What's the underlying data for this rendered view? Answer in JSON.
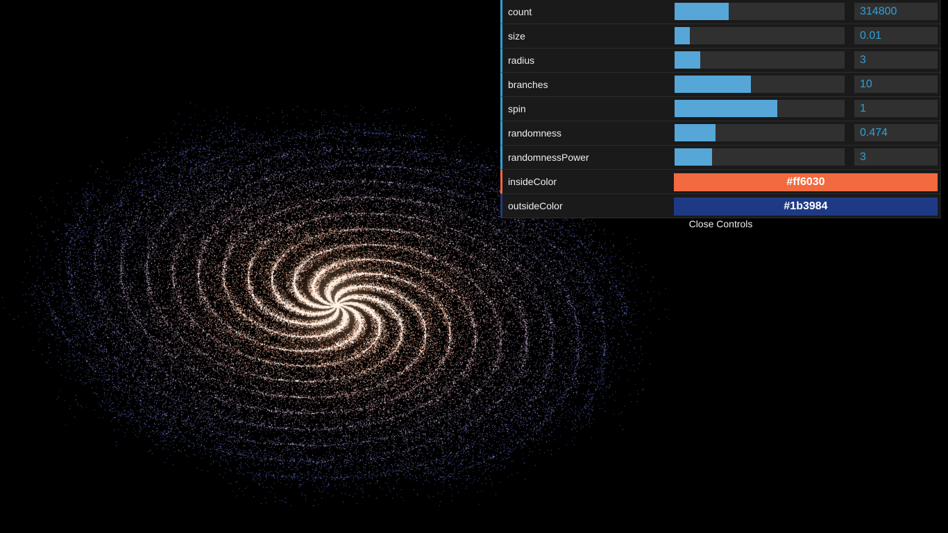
{
  "canvas": {
    "background": "#000000"
  },
  "controls": [
    {
      "key": "count",
      "label": "count",
      "value": "314800",
      "fill": 0.32
    },
    {
      "key": "size",
      "label": "size",
      "value": "0.01",
      "fill": 0.09
    },
    {
      "key": "radius",
      "label": "radius",
      "value": "3",
      "fill": 0.15
    },
    {
      "key": "branches",
      "label": "branches",
      "value": "10",
      "fill": 0.45
    },
    {
      "key": "spin",
      "label": "spin",
      "value": "1",
      "fill": 0.605
    },
    {
      "key": "randomness",
      "label": "randomness",
      "value": "0.474",
      "fill": 0.24
    },
    {
      "key": "randomnessPower",
      "label": "randomnessPower",
      "value": "3",
      "fill": 0.22
    }
  ],
  "colors": {
    "inside": {
      "label": "insideColor",
      "value": "#ff6030",
      "swatch": "#f26a3f"
    },
    "outside": {
      "label": "outsideColor",
      "value": "#1b3984",
      "swatch": "#1f3a85"
    }
  },
  "close_label": "Close Controls"
}
